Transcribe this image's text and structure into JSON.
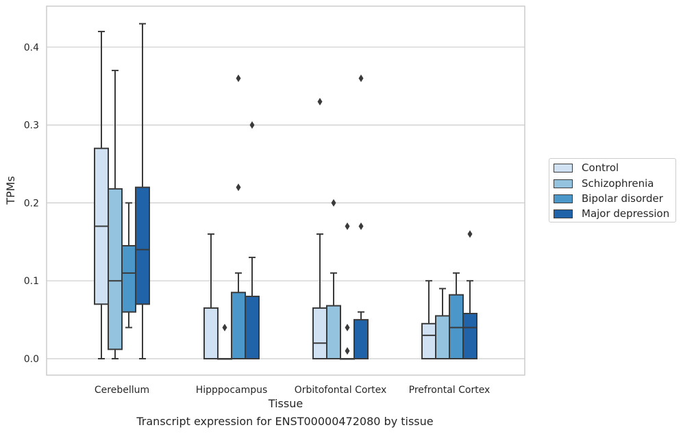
{
  "caption": "Transcript expression for ENST00000472080 by tissue",
  "chart_data": {
    "type": "boxplot",
    "xlabel": "Tissue",
    "ylabel": "TPMs",
    "ylim": [
      -0.02,
      0.455
    ],
    "yticks": [
      0.0,
      0.1,
      0.2,
      0.3,
      0.4
    ],
    "ytick_labels": [
      "0.0",
      "0.1",
      "0.2",
      "0.3",
      "0.4"
    ],
    "grid": "horizontal",
    "legend_position": "right",
    "categories": [
      "Cerebellum",
      "Hipppocampus",
      "Orbitofontal Cortex",
      "Prefrontal Cortex"
    ],
    "series": [
      {
        "name": "Control",
        "color": "#cfe1f2",
        "boxes": [
          {
            "whislo": 0.0,
            "q1": 0.07,
            "med": 0.17,
            "q3": 0.27,
            "whishi": 0.42,
            "fliers": []
          },
          {
            "whislo": 0.0,
            "q1": 0.0,
            "med": 0.0,
            "q3": 0.065,
            "whishi": 0.16,
            "fliers": []
          },
          {
            "whislo": 0.0,
            "q1": 0.0,
            "med": 0.02,
            "q3": 0.065,
            "whishi": 0.16,
            "fliers": [
              0.33
            ]
          },
          {
            "whislo": 0.0,
            "q1": 0.0,
            "med": 0.03,
            "q3": 0.045,
            "whishi": 0.1,
            "fliers": []
          }
        ]
      },
      {
        "name": "Schizophrenia",
        "color": "#93c3df",
        "boxes": [
          {
            "whislo": 0.0,
            "q1": 0.012,
            "med": 0.1,
            "q3": 0.218,
            "whishi": 0.37,
            "fliers": []
          },
          {
            "whislo": 0.0,
            "q1": 0.0,
            "med": 0.0,
            "q3": 0.0,
            "whishi": 0.0,
            "fliers": [
              0.04
            ]
          },
          {
            "whislo": 0.0,
            "q1": 0.0,
            "med": 0.0,
            "q3": 0.068,
            "whishi": 0.11,
            "fliers": [
              0.2
            ]
          },
          {
            "whislo": 0.0,
            "q1": 0.0,
            "med": 0.0,
            "q3": 0.055,
            "whishi": 0.09,
            "fliers": []
          }
        ]
      },
      {
        "name": "Bipolar disorder",
        "color": "#4b97c9",
        "boxes": [
          {
            "whislo": 0.04,
            "q1": 0.06,
            "med": 0.11,
            "q3": 0.145,
            "whishi": 0.2,
            "fliers": []
          },
          {
            "whislo": 0.0,
            "q1": 0.0,
            "med": 0.0,
            "q3": 0.085,
            "whishi": 0.11,
            "fliers": [
              0.36,
              0.22
            ]
          },
          {
            "whislo": 0.0,
            "q1": 0.0,
            "med": 0.0,
            "q3": 0.0,
            "whishi": 0.0,
            "fliers": [
              0.17,
              0.04,
              0.01
            ]
          },
          {
            "whislo": 0.0,
            "q1": 0.0,
            "med": 0.04,
            "q3": 0.082,
            "whishi": 0.11,
            "fliers": []
          }
        ]
      },
      {
        "name": "Major depression",
        "color": "#2163a8",
        "boxes": [
          {
            "whislo": 0.0,
            "q1": 0.07,
            "med": 0.14,
            "q3": 0.22,
            "whishi": 0.43,
            "fliers": []
          },
          {
            "whislo": 0.0,
            "q1": 0.0,
            "med": 0.0,
            "q3": 0.08,
            "whishi": 0.13,
            "fliers": [
              0.3
            ]
          },
          {
            "whislo": 0.0,
            "q1": 0.0,
            "med": 0.0,
            "q3": 0.05,
            "whishi": 0.06,
            "fliers": [
              0.36,
              0.17
            ]
          },
          {
            "whislo": 0.0,
            "q1": 0.0,
            "med": 0.04,
            "q3": 0.058,
            "whishi": 0.1,
            "fliers": [
              0.16
            ]
          }
        ]
      }
    ]
  }
}
